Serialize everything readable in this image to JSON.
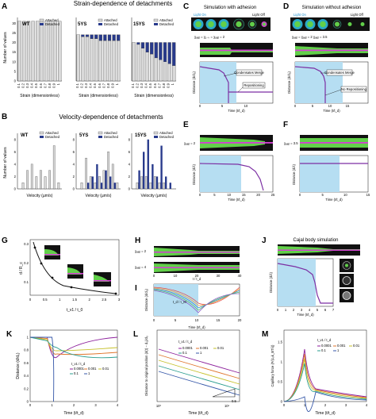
{
  "panels": {
    "A": {
      "letter": "A",
      "title": "Strain-dependence of detachments",
      "ylabel": "Number of values",
      "legend": [
        "Attached",
        "Detached"
      ],
      "subplots": [
        {
          "label": "WT",
          "xlabel": "Strain (dimensionless)",
          "ticks": [
            "0.1",
            "0.2",
            "0.3",
            "0.4",
            "0.5",
            "0.6",
            "0.7",
            "0.8",
            "0.9",
            "1"
          ],
          "yticks": [
            "0",
            "5",
            "10",
            "15",
            "20",
            "25",
            "30"
          ],
          "attached": [
            31,
            31,
            31,
            31,
            31,
            31,
            31,
            31,
            31,
            31
          ],
          "detached": [
            0,
            0,
            0,
            0,
            0,
            0,
            0,
            0,
            0,
            0
          ]
        },
        {
          "label": "5YS",
          "xlabel": "Strain (dimensionless)",
          "ticks": [
            "0.1",
            "0.2",
            "0.3",
            "0.4",
            "0.5",
            "0.6",
            "0.7",
            "0.8",
            "0.9",
            "1"
          ],
          "attached": [
            24,
            23,
            23,
            22,
            22,
            21,
            21,
            21,
            21,
            21
          ],
          "detached": [
            0,
            1,
            1,
            2,
            2,
            3,
            3,
            3,
            3,
            3
          ]
        },
        {
          "label": "15YS",
          "xlabel": "Strain (dimensionless)",
          "ticks": [
            "0.1",
            "0.2",
            "0.3",
            "0.4",
            "0.5",
            "0.6",
            "0.7",
            "0.8",
            "0.9",
            "1"
          ],
          "attached": [
            20,
            19,
            17,
            15,
            14,
            12,
            11,
            10,
            9,
            8
          ],
          "detached": [
            0,
            1,
            3,
            5,
            6,
            8,
            9,
            10,
            11,
            12
          ]
        }
      ]
    },
    "B": {
      "letter": "B",
      "title": "Velocity-dependence of detachments",
      "ylabel": "Number of values",
      "legend": [
        "Attached",
        "Detached"
      ],
      "subplots": [
        {
          "label": "WT",
          "xlabel": "Velocity (µm/s)",
          "yticks": [
            "0",
            "2",
            "4",
            "6",
            "8"
          ],
          "attached": [
            0,
            1,
            3,
            4,
            2,
            3,
            2,
            3,
            7,
            1
          ],
          "detached": [
            0,
            0,
            0,
            0,
            0,
            0,
            0,
            0,
            0,
            0
          ]
        },
        {
          "label": "5YS",
          "xlabel": "Velocity (µm/s)",
          "yticks": [
            "0",
            "2",
            "4",
            "6",
            "8"
          ],
          "attached": [
            0,
            1,
            5,
            2,
            1,
            2,
            3,
            6,
            4,
            1
          ],
          "detached": [
            0,
            0,
            1,
            2,
            4,
            1,
            3,
            2,
            1,
            0
          ]
        },
        {
          "label": "15YS",
          "xlabel": "Velocity (µm/s)",
          "yticks": [
            "0",
            "2",
            "4",
            "6",
            "8"
          ],
          "attached": [
            0,
            1,
            2,
            2,
            1,
            2,
            1,
            1,
            0,
            0
          ],
          "detached": [
            0,
            3,
            6,
            8,
            4,
            2,
            7,
            2,
            1,
            0
          ]
        }
      ]
    },
    "C": {
      "letter": "C",
      "title": "Simulation with adhesion",
      "light_on": "Light On",
      "light_off": "Light Off",
      "chi": "χₐₐᵦ = χ₁₋ₖ = χₐₐᵦ = 2",
      "ylabel": "Distance (d/d₀)",
      "xlabel": "Time (t/t_d)",
      "ann1": "Condensates Merge",
      "ann2": "Repositioning",
      "xticks": [
        "0",
        "5",
        "10"
      ]
    },
    "D": {
      "letter": "D",
      "title": "Simulation without adhesion",
      "light_on": "Light On",
      "light_off": "Light Off",
      "chi": "χₐₐᵦ = χₐₐᵦ = 2   χₐₐᵦ = 3.5",
      "ylabel": "Distance (d/d₀)",
      "xlabel": "Time (t/t_d)",
      "ann1": "Condensates Merge",
      "ann2": "No Repositioning",
      "xticks": [
        "0",
        "5",
        "10",
        "15"
      ]
    },
    "E": {
      "letter": "E",
      "chi": "χₐₐᵦ = 2",
      "ylabel": "Distance (d/λ)",
      "xlabel": "Time (t/t_d)",
      "xticks": [
        "0",
        "5",
        "10",
        "15",
        "20",
        "25"
      ],
      "yticks": [
        "0",
        "10",
        "20",
        "30"
      ]
    },
    "F": {
      "letter": "F",
      "chi": "χₐₐᵦ = 3.5",
      "ylabel": "Distance (d/λ)",
      "xlabel": "Time (t/t_d)",
      "xticks": [
        "0",
        "5",
        "10",
        "15"
      ],
      "yticks": [
        "0",
        "10",
        "20",
        "30"
      ]
    },
    "G": {
      "letter": "G",
      "ylabel": "d / R_c",
      "xlabel": "t_v1 / t_0",
      "xticks": [
        "0",
        "0.5",
        "1",
        "1.5",
        "2",
        "2.5",
        "3"
      ],
      "yticks": [
        "0.1",
        "0.2",
        "0.3"
      ]
    },
    "H": {
      "letter": "H",
      "chi1": "χₐₐᵦ = 2",
      "chi2": "χₐₐᵦ = 4",
      "xlabel": "t / t_d",
      "xticks": [
        "0",
        "10",
        "20",
        "30",
        "40"
      ]
    },
    "I": {
      "letter": "I",
      "ylabel": "Distance (d/d₀)",
      "xlabel": "Time (t/t_d)",
      "xticks": [
        "0",
        "5",
        "10",
        "15",
        "20"
      ],
      "legend_label": "t_d / τ_M"
    },
    "J": {
      "letter": "J",
      "title": "Cajal body simulation",
      "ylabel": "Distance (d/λ)",
      "xlabel": "Time (t/t_d)",
      "xticks": [
        "0",
        "1",
        "2",
        "3",
        "4",
        "5",
        "6",
        "7"
      ]
    },
    "K": {
      "letter": "K",
      "ylabel": "Distance (d/d₀)",
      "xlabel": "Time (t/t_d)",
      "legend_title": "t_v1 / t_d",
      "legend": [
        "0.0001",
        "0.001",
        "0.01",
        "0.1",
        "1"
      ],
      "xticks": [
        "0",
        "1",
        "2",
        "3",
        "4"
      ],
      "yticks": [
        "0",
        "0.2",
        "0.4",
        "0.6",
        "0.8",
        "1"
      ]
    },
    "L": {
      "letter": "L",
      "ylabel": "Distance to original position (d(t) − d₀)/d₀",
      "xlabel": "Time (t/t_d)",
      "legend_title": "t_v1 / t_d",
      "legend": [
        "0.0001",
        "0.001",
        "0.01",
        "0.1",
        "1"
      ],
      "slope": "0.5",
      "xticks": [
        "10⁰",
        "10¹"
      ]
    },
    "M": {
      "letter": "M",
      "ylabel": "Capillary force (F/(c₀k_BTλ))",
      "xlabel": "Time (t/t_d)",
      "legend_title": "t_v1 / t_d",
      "legend": [
        "0.0001",
        "0.001",
        "0.01",
        "0.1",
        "1"
      ],
      "xticks": [
        "0",
        "1",
        "2",
        "3",
        "4"
      ],
      "yticks": [
        "0",
        "0.5",
        "1",
        "1.5"
      ]
    }
  },
  "colors": {
    "attached": "#d9d9d9",
    "detached": "#283a8c",
    "bar_edge": "#333333",
    "purple": "#7c2fa3",
    "light_blue": "#b6def2",
    "green": "#63c944",
    "magenta": "#d43fd4",
    "dark": "#111111",
    "k_lines": [
      "#8c1f9b",
      "#e0752c",
      "#c6c02a",
      "#2a9d8f",
      "#3456a8"
    ]
  }
}
